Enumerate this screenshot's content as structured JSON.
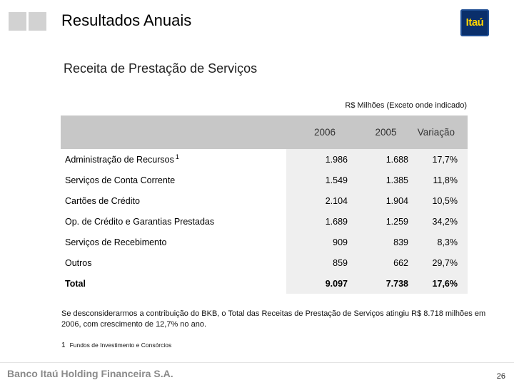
{
  "header": {
    "title": "Resultados Anuais",
    "logo_text": "Itaú"
  },
  "subtitle": "Receita de Prestação de Serviços",
  "unit_note": "R$ Milhões (Exceto onde indicado)",
  "table": {
    "columns": [
      "2006",
      "2005",
      "Variação"
    ],
    "rows": [
      {
        "label": "Administração de Recursos",
        "sup": "1",
        "v2006": "1.986",
        "v2005": "1.688",
        "var": "17,7%"
      },
      {
        "label": "Serviços de Conta Corrente",
        "sup": "",
        "v2006": "1.549",
        "v2005": "1.385",
        "var": "11,8%"
      },
      {
        "label": "Cartões de Crédito",
        "sup": "",
        "v2006": "2.104",
        "v2005": "1.904",
        "var": "10,5%"
      },
      {
        "label": "Op. de Crédito e Garantias Prestadas",
        "sup": "",
        "v2006": "1.689",
        "v2005": "1.259",
        "var": "34,2%"
      },
      {
        "label": "Serviços de Recebimento",
        "sup": "",
        "v2006": "909",
        "v2005": "839",
        "var": "8,3%"
      },
      {
        "label": "Outros",
        "sup": "",
        "v2006": "859",
        "v2005": "662",
        "var": "29,7%"
      }
    ],
    "total": {
      "label": "Total",
      "v2006": "9.097",
      "v2005": "7.738",
      "var": "17,6%"
    }
  },
  "note": "Se desconsiderarmos a contribuição do BKB, o Total das Receitas de Prestação de Serviços atingiu R$ 8.718 milhões em 2006, com crescimento de 12,7% no ano.",
  "footnote": {
    "mark": "1",
    "text": "Fundos de Investimento e Consórcios"
  },
  "footer": {
    "brand": "Banco Itaú Holding Financeira S.A.",
    "page": "26"
  }
}
